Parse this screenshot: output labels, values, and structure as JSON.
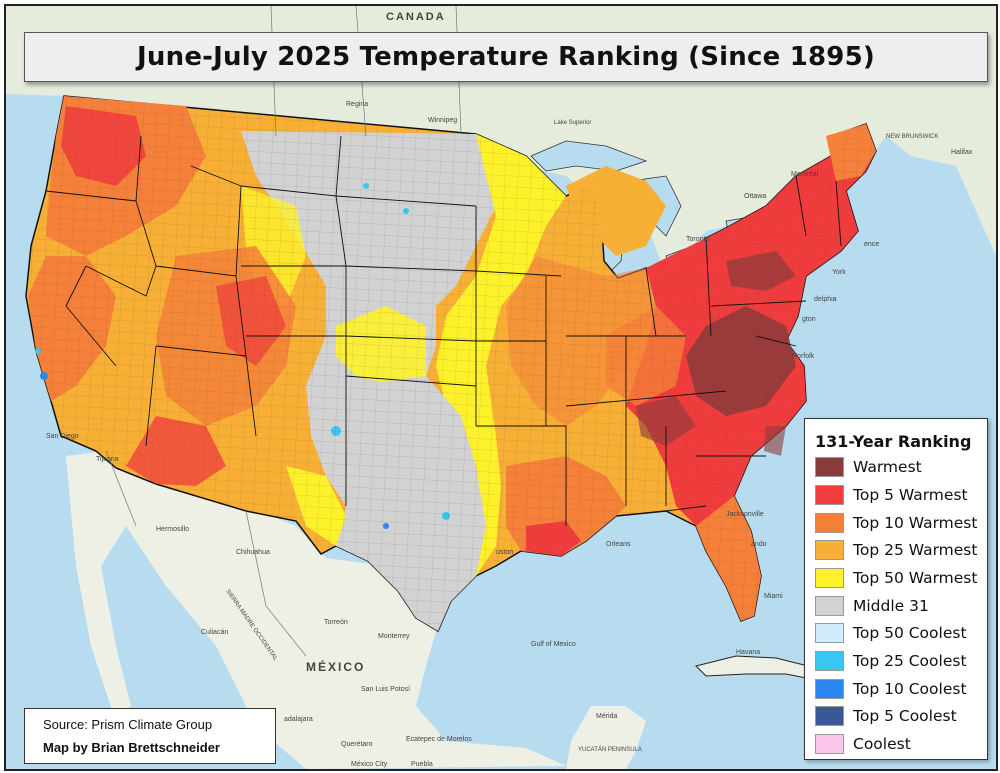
{
  "title": "June-July 2025 Temperature Ranking (Since 1895)",
  "legend": {
    "title": "131-Year Ranking",
    "items": [
      {
        "label": "Warmest",
        "color": "#8b3a3a"
      },
      {
        "label": "Top 5 Warmest",
        "color": "#f03c3c"
      },
      {
        "label": "Top 10 Warmest",
        "color": "#f5803a"
      },
      {
        "label": "Top 25 Warmest",
        "color": "#f7b035"
      },
      {
        "label": "Top 50 Warmest",
        "color": "#fdf22a"
      },
      {
        "label": "Middle 31",
        "color": "#d2d2d2"
      },
      {
        "label": "Top 50 Coolest",
        "color": "#d1ecfb"
      },
      {
        "label": "Top 25 Coolest",
        "color": "#38c6f3"
      },
      {
        "label": "Top 10 Coolest",
        "color": "#2b86f0"
      },
      {
        "label": "Top 5 Coolest",
        "color": "#3a5796"
      },
      {
        "label": "Coolest",
        "color": "#fbc6ea"
      }
    ]
  },
  "credits": {
    "source": "Source: Prism Climate Group",
    "author": "Map by Brian Brettschneider"
  },
  "colors": {
    "ocean": "#b7dcef",
    "land": "#e5ecdc",
    "mexico_land": "#eef0e6",
    "border": "#111111"
  },
  "place_labels": [
    {
      "id": "canada",
      "text": "CANADA"
    },
    {
      "id": "mexico",
      "text": "MÉXICO"
    },
    {
      "id": "regina",
      "text": "Regina"
    },
    {
      "id": "winnipeg",
      "text": "Winnipeg"
    },
    {
      "id": "montreal",
      "text": "Montréal"
    },
    {
      "id": "ottawa",
      "text": "Ottawa"
    },
    {
      "id": "toronto",
      "text": "Toronto"
    },
    {
      "id": "halifax",
      "text": "Halifax"
    },
    {
      "id": "new-brunswick",
      "text": "NEW BRUNSWICK"
    },
    {
      "id": "providence",
      "text": "ence"
    },
    {
      "id": "new-york",
      "text": "York"
    },
    {
      "id": "philadelphia",
      "text": "delphia"
    },
    {
      "id": "washington",
      "text": "gton"
    },
    {
      "id": "norfolk",
      "text": "Norfolk"
    },
    {
      "id": "san-diego",
      "text": "San Diego"
    },
    {
      "id": "tijuana",
      "text": "Tijuana"
    },
    {
      "id": "hermosillo",
      "text": "Hermosillo"
    },
    {
      "id": "chihuahua",
      "text": "Chihuahua"
    },
    {
      "id": "culiacan",
      "text": "Culiacán"
    },
    {
      "id": "torreon",
      "text": "Torreón"
    },
    {
      "id": "monterrey",
      "text": "Monterrey"
    },
    {
      "id": "san-luis-potosi",
      "text": "San Luis Potosí"
    },
    {
      "id": "guadalajara",
      "text": "adalajara"
    },
    {
      "id": "queretaro",
      "text": "Querétaro"
    },
    {
      "id": "ecatepec",
      "text": "Ecatepec de Morelos"
    },
    {
      "id": "mexico-city",
      "text": "México City"
    },
    {
      "id": "puebla",
      "text": "Puebla"
    },
    {
      "id": "sierra-madre",
      "text": "SIERRA MADRE OCCIDENTAL"
    },
    {
      "id": "gulf-of-mexico",
      "text": "Gulf of Mexico"
    },
    {
      "id": "houston",
      "text": "uston"
    },
    {
      "id": "new-orleans",
      "text": "Orleans"
    },
    {
      "id": "jacksonville",
      "text": "Jacksonville"
    },
    {
      "id": "orlando",
      "text": "ando"
    },
    {
      "id": "miami",
      "text": "Miami"
    },
    {
      "id": "havana",
      "text": "Havana"
    },
    {
      "id": "merida",
      "text": "Mérida"
    },
    {
      "id": "yucatan",
      "text": "YUCATÁN PENINSULA"
    },
    {
      "id": "lake-superior",
      "text": "Lake Superior"
    }
  ]
}
